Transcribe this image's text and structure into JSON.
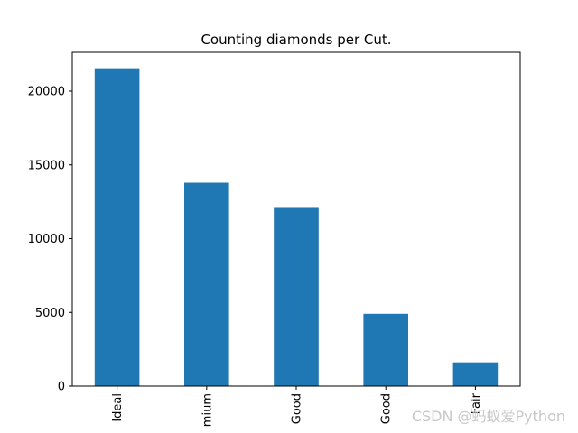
{
  "chart_data": {
    "type": "bar",
    "title": "Counting diamonds per Cut.",
    "xlabel": "",
    "ylabel": "",
    "categories": [
      "Ideal",
      "Premium",
      "Very Good",
      "Good",
      "Fair"
    ],
    "tick_labels_visible": [
      "Ideal",
      "mium",
      "Good",
      "Good",
      "Fair"
    ],
    "values": [
      21551,
      13791,
      12082,
      4906,
      1610
    ],
    "ylim": [
      0,
      22630
    ],
    "yticks": [
      0,
      5000,
      10000,
      15000,
      20000
    ],
    "ytick_labels": [
      "0",
      "5000",
      "10000",
      "15000",
      "20000"
    ],
    "grid": false,
    "legend": "none",
    "bar_color": "#1f77b4"
  },
  "watermark": {
    "text": "CSDN @蚂蚁爱Python"
  }
}
